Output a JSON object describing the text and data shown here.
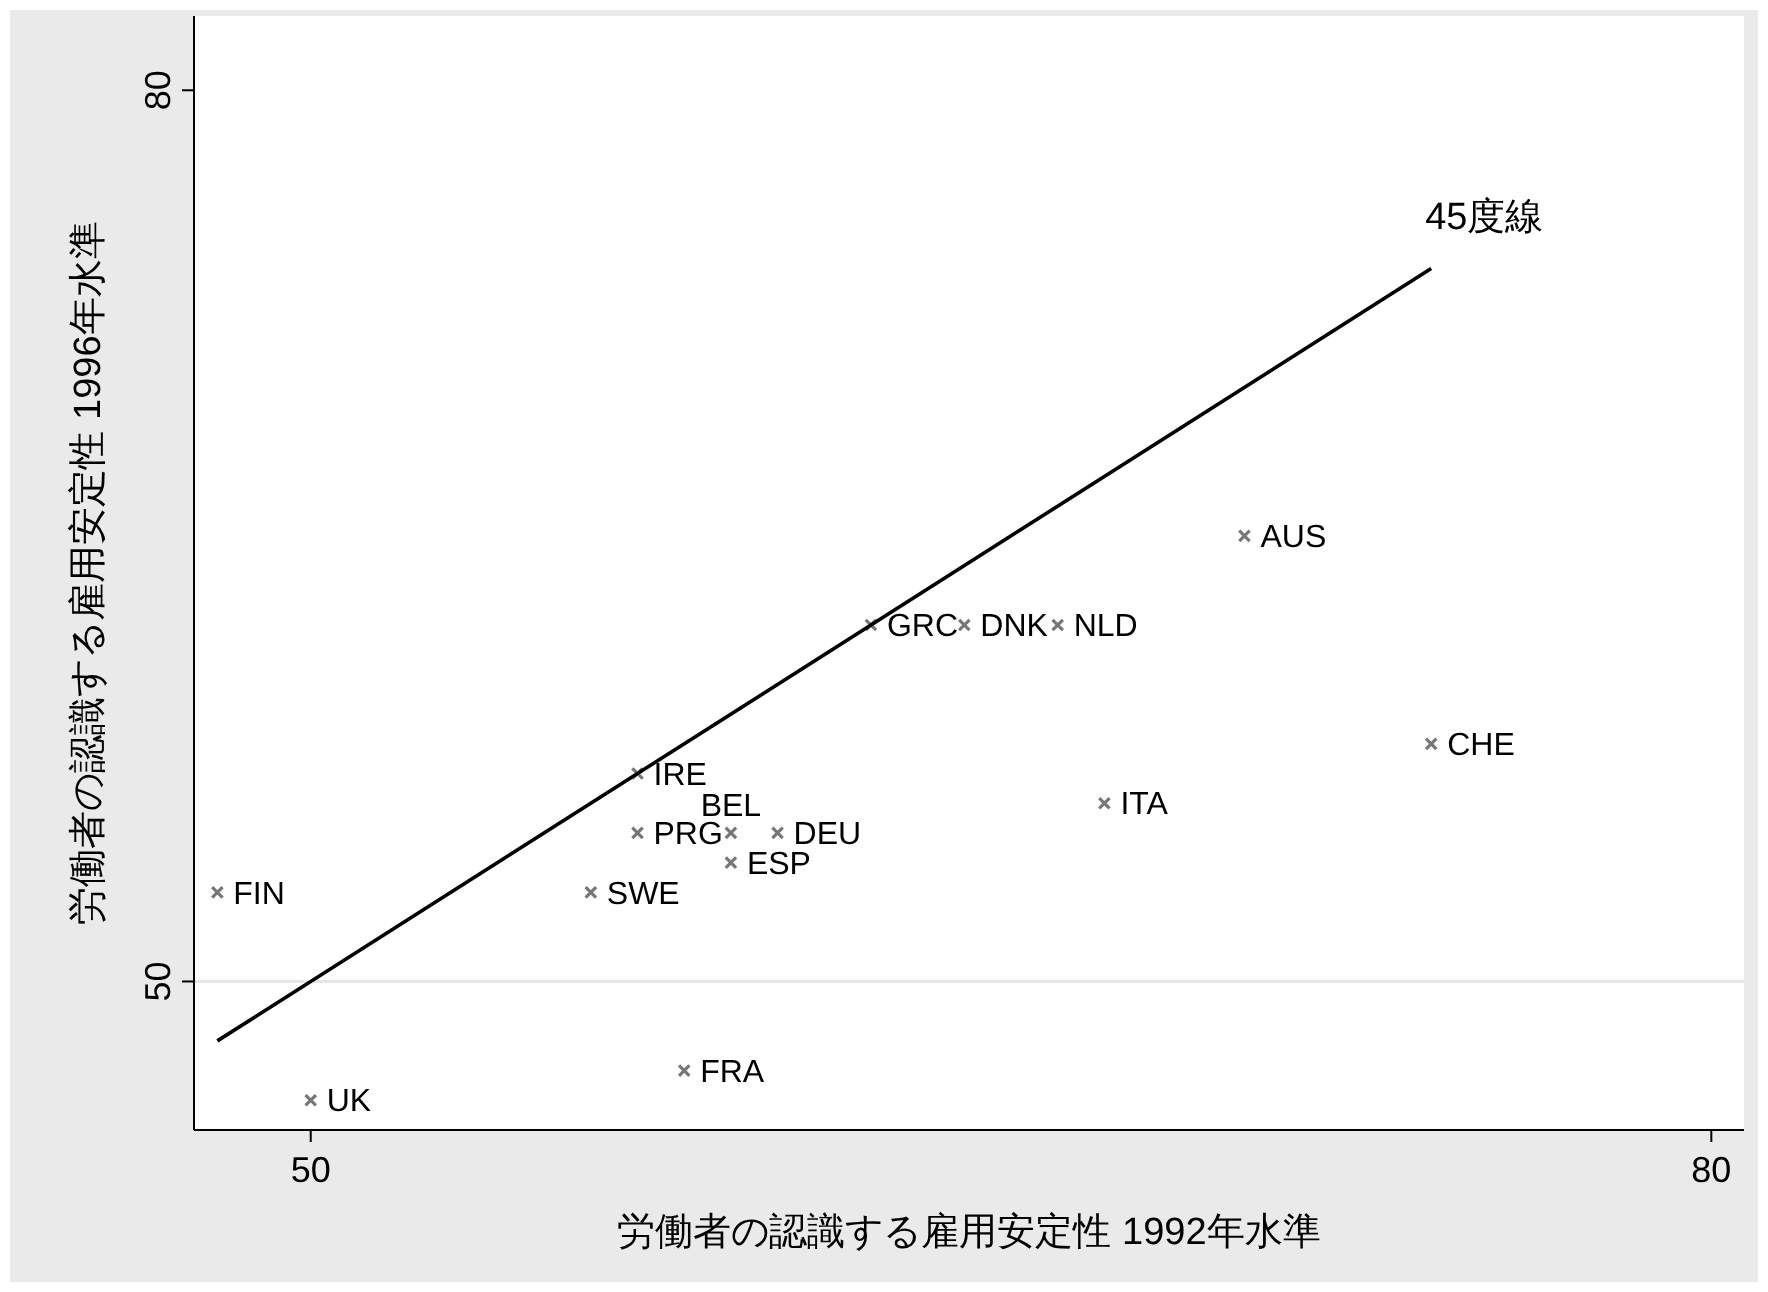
{
  "chart_data": {
    "type": "scatter",
    "xlabel": "労働者の認識する雇用安定性 1992年水準",
    "ylabel": "労働者の認識する雇用安定性 1996年水準",
    "xlim": [
      47.5,
      80.7
    ],
    "ylim": [
      45,
      82.5
    ],
    "xticks": [
      50,
      80
    ],
    "yticks": [
      50,
      80
    ],
    "grid": false,
    "marker": "cross",
    "series": [
      {
        "color": "#777777",
        "x": [
          48,
          50,
          56,
          58,
          57,
          57,
          59,
          60,
          59,
          62,
          64,
          66,
          67,
          70,
          74
        ],
        "values": [
          53,
          46,
          53,
          47,
          55,
          57,
          55,
          55,
          54,
          62,
          62,
          62,
          56,
          65,
          58
        ],
        "value_labels": [
          "FIN",
          "UK",
          "SWE",
          "FRA",
          "PRG",
          "IRE",
          "BEL",
          "DEU",
          "ESP",
          "GRC",
          "DNK",
          "NLD",
          "ITA",
          "AUS",
          "CHE"
        ]
      },
      {
        "type": "line",
        "color": "#000000",
        "x": [
          48,
          74
        ],
        "values": [
          48,
          74
        ],
        "line_style": "solid",
        "marker": "none"
      }
    ],
    "ref_lines": [
      {
        "axis": "y",
        "value": 50,
        "color": "#e6e6e6"
      }
    ],
    "annotations": [
      {
        "text": "45度線",
        "x": 74,
        "y": 74
      }
    ]
  }
}
